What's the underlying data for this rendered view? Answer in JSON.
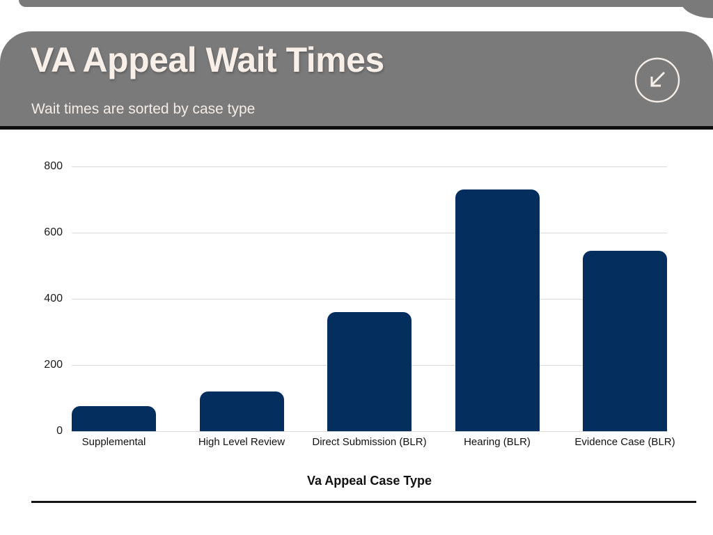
{
  "header": {
    "title": "VA Appeal Wait Times",
    "subtitle": "Wait times are sorted by case type",
    "bg_color": "#7a7a7a",
    "text_color": "#f8efe9",
    "icon": "arrow-down-left-icon"
  },
  "chart_data": {
    "type": "bar",
    "categories": [
      "Supplemental",
      "High Level Review",
      "Direct Submission (BLR)",
      "Hearing (BLR)",
      "Evidence Case (BLR)"
    ],
    "values": [
      75,
      120,
      360,
      730,
      545
    ],
    "xlabel": "Va Appeal Case Type",
    "ylabel": "",
    "ylim": [
      0,
      800
    ],
    "yticks": [
      0,
      200,
      400,
      600,
      800
    ],
    "grid": true,
    "legend_position": "none",
    "bar_color": "#032e5e",
    "gridline_color": "#d9d9d9",
    "tick_label_color": "#1a1a1a"
  }
}
